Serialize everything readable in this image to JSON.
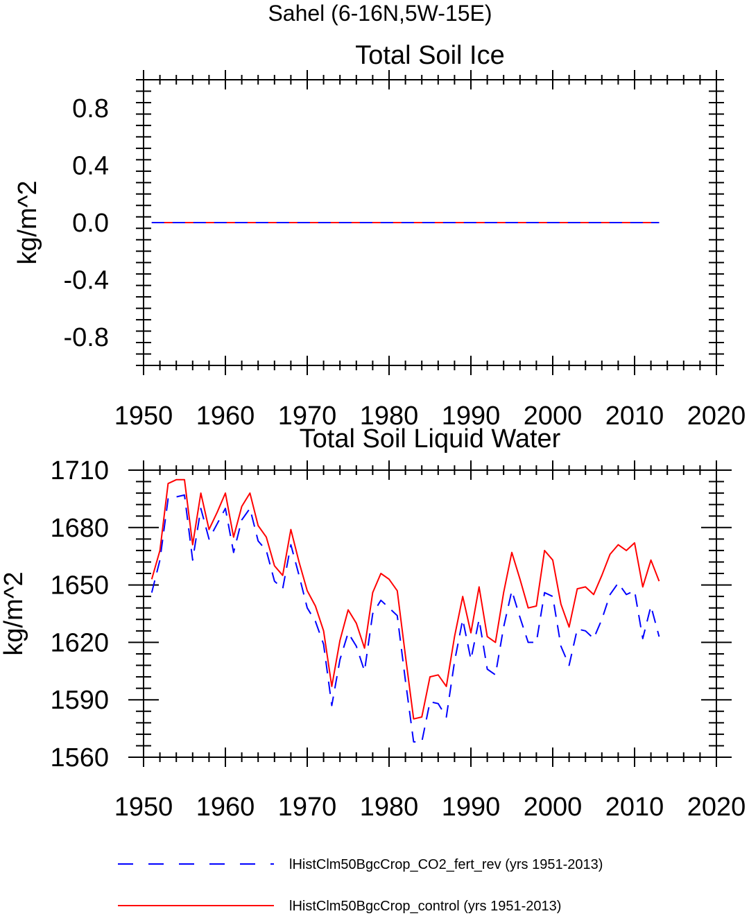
{
  "figure_title": "Sahel (6-16N,5W-15E)",
  "legend": [
    {
      "label": "lHistClm50BgcCrop_CO2_fert_rev (yrs 1951-2013)",
      "color": "#0000ff",
      "dash": true
    },
    {
      "label": "lHistClm50BgcCrop_control (yrs 1951-2013)",
      "color": "#ff0000",
      "dash": false
    }
  ],
  "chart_data": [
    {
      "type": "line",
      "title": "Total Soil Ice",
      "ylabel": "kg/m^2",
      "xlabel": "",
      "xlim": [
        1950,
        2020
      ],
      "ylim": [
        -1.0,
        1.0
      ],
      "xticks": [
        1950,
        1960,
        1970,
        1980,
        1990,
        2000,
        2010,
        2020
      ],
      "xtick_labels": [
        "1950",
        "1960",
        "1970",
        "1980",
        "1990",
        "2000",
        "2010",
        "2020"
      ],
      "yticks": [
        -0.8,
        -0.4,
        0.0,
        0.4,
        0.8
      ],
      "ytick_labels": [
        "-0.8",
        "-0.4",
        "0.0",
        "0.4",
        "0.8"
      ],
      "x": [
        1951,
        2013
      ],
      "series": [
        {
          "values": [
            0.0,
            0.0
          ],
          "color": "#ff0000",
          "dash": false
        },
        {
          "values": [
            0.0,
            0.0
          ],
          "color": "#0000ff",
          "dash": true
        }
      ]
    },
    {
      "type": "line",
      "title": "Total Soil Liquid Water",
      "ylabel": "kg/m^2",
      "xlabel": "",
      "xlim": [
        1950,
        2020
      ],
      "ylim": [
        1560,
        1710
      ],
      "xticks": [
        1950,
        1960,
        1970,
        1980,
        1990,
        2000,
        2010,
        2020
      ],
      "xtick_labels": [
        "1950",
        "1960",
        "1970",
        "1980",
        "1990",
        "2000",
        "2010",
        "2020"
      ],
      "yticks": [
        1560,
        1590,
        1620,
        1650,
        1680,
        1710
      ],
      "ytick_labels": [
        "1560",
        "1590",
        "1620",
        "1650",
        "1680",
        "1710"
      ],
      "x": [
        1951,
        1952,
        1953,
        1954,
        1955,
        1956,
        1957,
        1958,
        1959,
        1960,
        1961,
        1962,
        1963,
        1964,
        1965,
        1966,
        1967,
        1968,
        1969,
        1970,
        1971,
        1972,
        1973,
        1974,
        1975,
        1976,
        1977,
        1978,
        1979,
        1980,
        1981,
        1982,
        1983,
        1984,
        1985,
        1986,
        1987,
        1988,
        1989,
        1990,
        1991,
        1992,
        1993,
        1994,
        1995,
        1996,
        1997,
        1998,
        1999,
        2000,
        2001,
        2002,
        2003,
        2004,
        2005,
        2006,
        2007,
        2008,
        2009,
        2010,
        2011,
        2012,
        2013
      ],
      "series": [
        {
          "color": "#ff0000",
          "dash": false,
          "values": [
            1653,
            1668,
            1703,
            1705,
            1705,
            1671,
            1698,
            1679,
            1688,
            1698,
            1675,
            1691,
            1698,
            1681,
            1675,
            1660,
            1655,
            1679,
            1662,
            1647,
            1639,
            1626,
            1597,
            1621,
            1637,
            1630,
            1617,
            1646,
            1656,
            1653,
            1647,
            1613,
            1580,
            1581,
            1602,
            1603,
            1597,
            1623,
            1644,
            1625,
            1649,
            1623,
            1620,
            1646,
            1667,
            1653,
            1638,
            1639,
            1668,
            1663,
            1640,
            1628,
            1648,
            1649,
            1645,
            1655,
            1666,
            1671,
            1668,
            1672,
            1649,
            1663,
            1652
          ]
        },
        {
          "color": "#0000ff",
          "dash": true,
          "values": [
            1646,
            1663,
            1695,
            1696,
            1697,
            1663,
            1690,
            1674,
            1682,
            1690,
            1667,
            1684,
            1690,
            1673,
            1668,
            1652,
            1648,
            1671,
            1655,
            1638,
            1631,
            1619,
            1587,
            1611,
            1625,
            1618,
            1605,
            1635,
            1642,
            1638,
            1634,
            1600,
            1568,
            1568,
            1589,
            1588,
            1581,
            1610,
            1632,
            1611,
            1632,
            1606,
            1603,
            1628,
            1647,
            1633,
            1620,
            1620,
            1646,
            1644,
            1618,
            1608,
            1627,
            1626,
            1622,
            1632,
            1645,
            1651,
            1645,
            1647,
            1622,
            1639,
            1623
          ]
        }
      ]
    }
  ]
}
